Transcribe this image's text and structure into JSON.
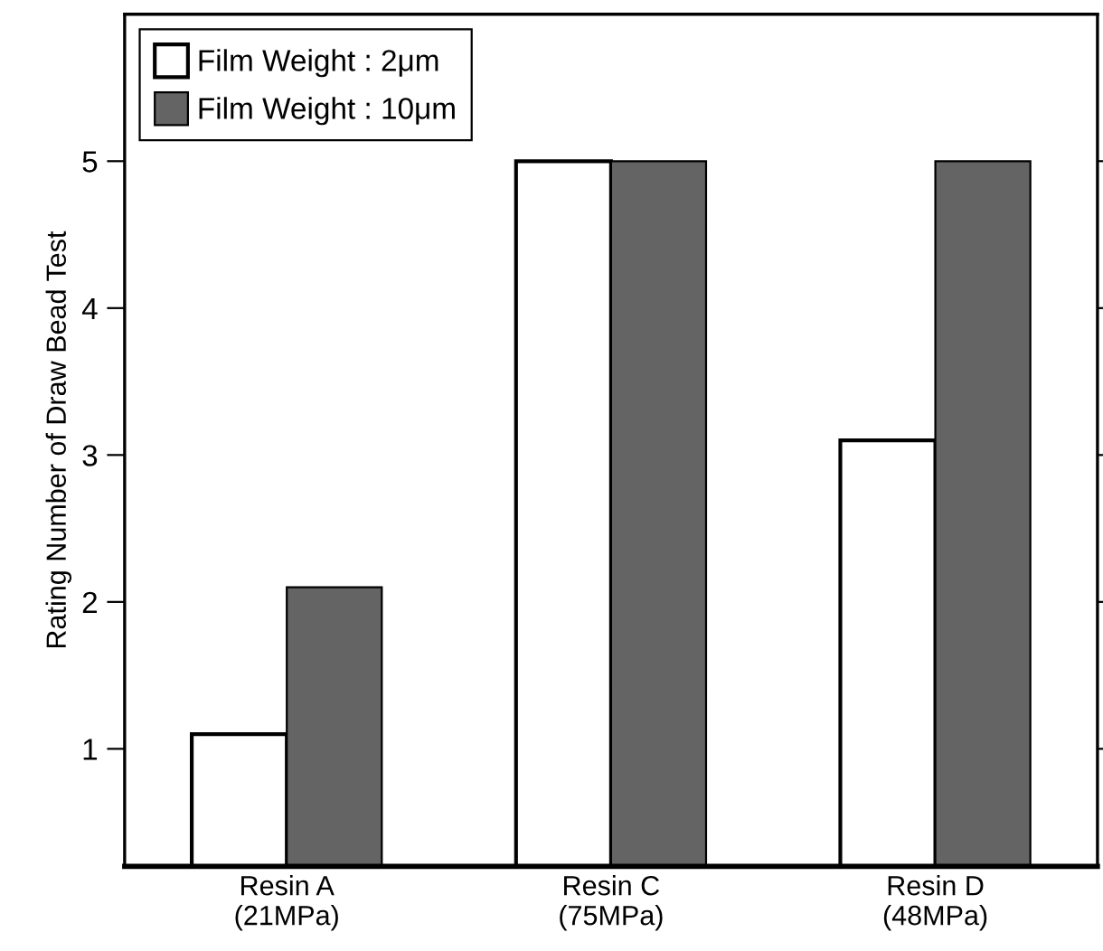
{
  "chart_data": {
    "type": "bar",
    "ylabel": "Rating Number of Draw Bead Test",
    "categories": [
      "Resin A\n(21MPa)",
      "Resin C\n(75MPa)",
      "Resin D\n(48MPa)"
    ],
    "series": [
      {
        "name": "Film Weight : 2μm",
        "color": "#ffffff",
        "values": [
          1.1,
          5,
          3.1
        ]
      },
      {
        "name": "Film Weight : 10μm",
        "color": "#646464",
        "values": [
          2.1,
          5,
          5
        ]
      }
    ],
    "ylim": [
      0.2,
      6
    ],
    "yticks": [
      1,
      2,
      3,
      4,
      5
    ],
    "grid": false,
    "legend": "top left"
  }
}
